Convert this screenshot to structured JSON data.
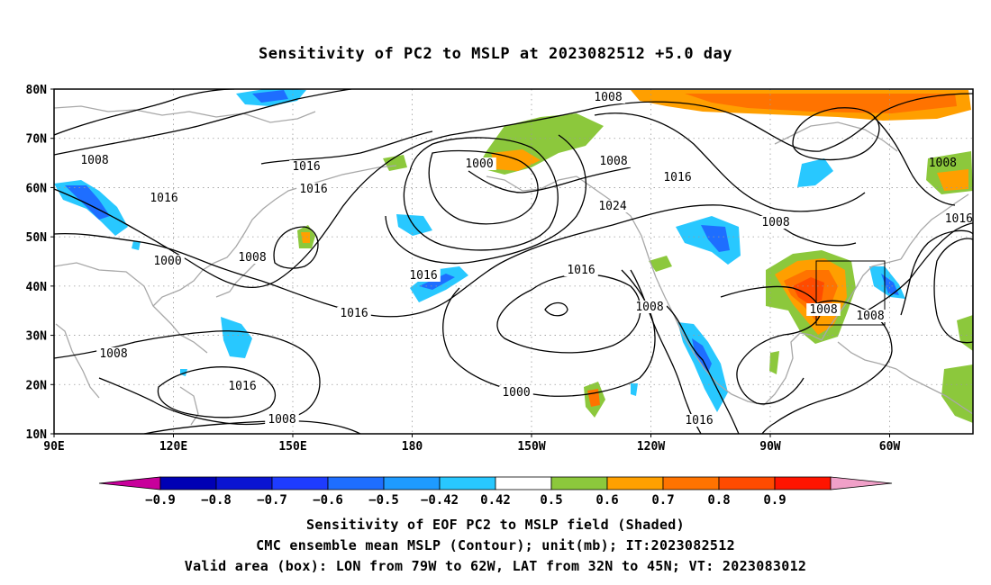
{
  "title": "Sensitivity of PC2 to MSLP at 2023082512 +5.0 day",
  "map": {
    "projection": "cylindrical lat-lon",
    "lon_range": [
      "90E",
      "40W"
    ],
    "lat_range": [
      "10N",
      "80N"
    ],
    "lat_labels": [
      "80N",
      "70N",
      "60N",
      "50N",
      "40N",
      "30N",
      "20N",
      "10N"
    ],
    "lon_labels": [
      "90E",
      "120E",
      "150E",
      "180",
      "150W",
      "120W",
      "90W",
      "60W"
    ],
    "grid": "dotted gray",
    "valid_box": {
      "lon": [
        "79W",
        "62W"
      ],
      "lat": [
        "32N",
        "45N"
      ]
    },
    "contour_labels": [
      "1008",
      "1016",
      "1000",
      "1008",
      "1016",
      "1016",
      "1000",
      "1008",
      "1008",
      "1016",
      "1024",
      "1008",
      "1016",
      "1016",
      "1008",
      "1008",
      "1008",
      "1016",
      "1000",
      "1008",
      "1016",
      "1008",
      "1016"
    ],
    "colors": {
      "neg_09": "#c800a0",
      "neg_08": "#0000a0",
      "neg_07": "#1414d2",
      "neg_06": "#1e3cff",
      "neg_05": "#1e78ff",
      "neg_042": "#28b4ff",
      "pos_042": "#8cc83c",
      "pos_05": "#ff9f00",
      "pos_06": "#ff7800",
      "pos_07": "#ff4b00",
      "pos_08": "#ff1e00",
      "pos_09": "#f0a0c8"
    }
  },
  "colorbar": {
    "labels": [
      "−0.9",
      "−0.8",
      "−0.7",
      "−0.6",
      "−0.5",
      "−0.42",
      "0.42",
      "0.5",
      "0.6",
      "0.7",
      "0.8",
      "0.9"
    ],
    "colors": [
      "#c8009b",
      "#0000b4",
      "#0a14d2",
      "#1e3cff",
      "#1e6eff",
      "#1e9bff",
      "#28c8ff",
      "#ffffff",
      "#8cc83c",
      "#ffa000",
      "#ff7300",
      "#ff4b00",
      "#ff1400",
      "#f0a0c8"
    ]
  },
  "caption": {
    "line1": "Sensitivity of EOF PC2 to MSLP field (Shaded)",
    "line2": "CMC ensemble mean MSLP (Contour); unit(mb); IT:2023082512",
    "line3": "Valid area (box): LON from 79W to 62W, LAT from 32N to 45N; VT: 2023083012"
  }
}
